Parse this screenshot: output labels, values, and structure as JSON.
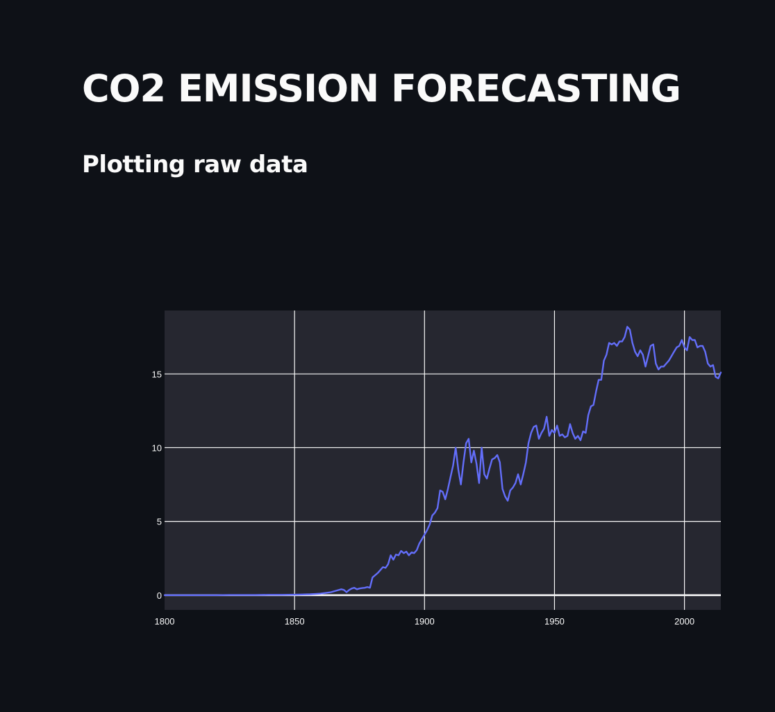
{
  "page": {
    "title": "CO2 EMISSION FORECASTING",
    "subheader": "Plotting raw data"
  },
  "colors": {
    "background": "#0e1117",
    "plot_background": "#262730",
    "grid": "#fafafa",
    "line": "#636efa",
    "text": "#fafafa"
  },
  "chart_data": {
    "type": "line",
    "grid": true,
    "xlim": [
      1800,
      2014
    ],
    "ylim": [
      -1,
      19.3
    ],
    "x_ticks": [
      1800,
      1850,
      1900,
      1950,
      2000
    ],
    "y_ticks": [
      0,
      5,
      10,
      15
    ],
    "series": [
      {
        "x": [
          1800,
          1805,
          1810,
          1815,
          1820,
          1825,
          1830,
          1835,
          1840,
          1845,
          1850,
          1852,
          1854,
          1856,
          1858,
          1860,
          1862,
          1864,
          1866,
          1868,
          1869,
          1870,
          1871,
          1872,
          1873,
          1874,
          1875,
          1876,
          1877,
          1878,
          1879,
          1880,
          1881,
          1882,
          1883,
          1884,
          1885,
          1886,
          1887,
          1888,
          1889,
          1890,
          1891,
          1892,
          1893,
          1894,
          1895,
          1896,
          1897,
          1898,
          1899,
          1900,
          1901,
          1902,
          1903,
          1904,
          1905,
          1906,
          1907,
          1908,
          1909,
          1910,
          1911,
          1912,
          1913,
          1914,
          1915,
          1916,
          1917,
          1918,
          1919,
          1920,
          1921,
          1922,
          1923,
          1924,
          1925,
          1926,
          1927,
          1928,
          1929,
          1930,
          1931,
          1932,
          1933,
          1934,
          1935,
          1936,
          1937,
          1938,
          1939,
          1940,
          1941,
          1942,
          1943,
          1944,
          1945,
          1946,
          1947,
          1948,
          1949,
          1950,
          1951,
          1952,
          1953,
          1954,
          1955,
          1956,
          1957,
          1958,
          1959,
          1960,
          1961,
          1962,
          1963,
          1964,
          1965,
          1966,
          1967,
          1968,
          1969,
          1970,
          1971,
          1972,
          1973,
          1974,
          1975,
          1976,
          1977,
          1978,
          1979,
          1980,
          1981,
          1982,
          1983,
          1984,
          1985,
          1986,
          1987,
          1988,
          1989,
          1990,
          1991,
          1992,
          1993,
          1994,
          1995,
          1996,
          1997,
          1998,
          1999,
          2000,
          2001,
          2002,
          2003,
          2004,
          2005,
          2006,
          2007,
          2008,
          2009,
          2010,
          2011,
          2012,
          2013,
          2014
        ],
        "y": [
          0,
          0,
          0,
          0,
          0,
          0.01,
          0.01,
          0.01,
          0.02,
          0.02,
          0.03,
          0.04,
          0.05,
          0.06,
          0.08,
          0.1,
          0.15,
          0.2,
          0.3,
          0.4,
          0.35,
          0.2,
          0.35,
          0.45,
          0.5,
          0.4,
          0.45,
          0.48,
          0.5,
          0.55,
          0.5,
          1.2,
          1.35,
          1.5,
          1.7,
          1.9,
          1.85,
          2.1,
          2.7,
          2.4,
          2.75,
          2.7,
          3.0,
          2.85,
          2.95,
          2.7,
          2.9,
          2.85,
          3.05,
          3.5,
          3.8,
          4.1,
          4.4,
          4.8,
          5.4,
          5.6,
          5.9,
          7.1,
          7.0,
          6.5,
          7.2,
          8.0,
          8.8,
          10.0,
          8.5,
          7.5,
          9.0,
          10.3,
          10.6,
          9.0,
          9.8,
          8.9,
          7.6,
          10.0,
          8.2,
          7.9,
          8.6,
          9.2,
          9.3,
          9.5,
          9.0,
          7.2,
          6.7,
          6.4,
          7.1,
          7.3,
          7.6,
          8.2,
          7.5,
          8.2,
          9.0,
          10.3,
          11.0,
          11.4,
          11.5,
          10.6,
          11.0,
          11.3,
          12.1,
          10.8,
          11.2,
          11.0,
          11.5,
          10.8,
          10.9,
          10.7,
          10.8,
          11.6,
          11.0,
          10.6,
          10.8,
          10.5,
          11.1,
          11.0,
          12.2,
          12.8,
          12.9,
          13.8,
          14.6,
          14.6,
          15.9,
          16.3,
          17.1,
          17.0,
          17.1,
          16.9,
          17.2,
          17.2,
          17.5,
          18.2,
          18.0,
          17.1,
          16.5,
          16.2,
          16.6,
          16.3,
          15.5,
          16.2,
          16.9,
          17.0,
          15.7,
          15.3,
          15.5,
          15.5,
          15.7,
          15.9,
          16.2,
          16.5,
          16.8,
          16.9,
          17.3,
          16.8,
          16.6,
          17.5,
          17.3,
          17.3,
          16.8,
          16.9,
          16.9,
          16.5,
          15.7,
          15.5,
          15.6,
          14.8,
          14.7,
          15.1
        ]
      }
    ]
  }
}
